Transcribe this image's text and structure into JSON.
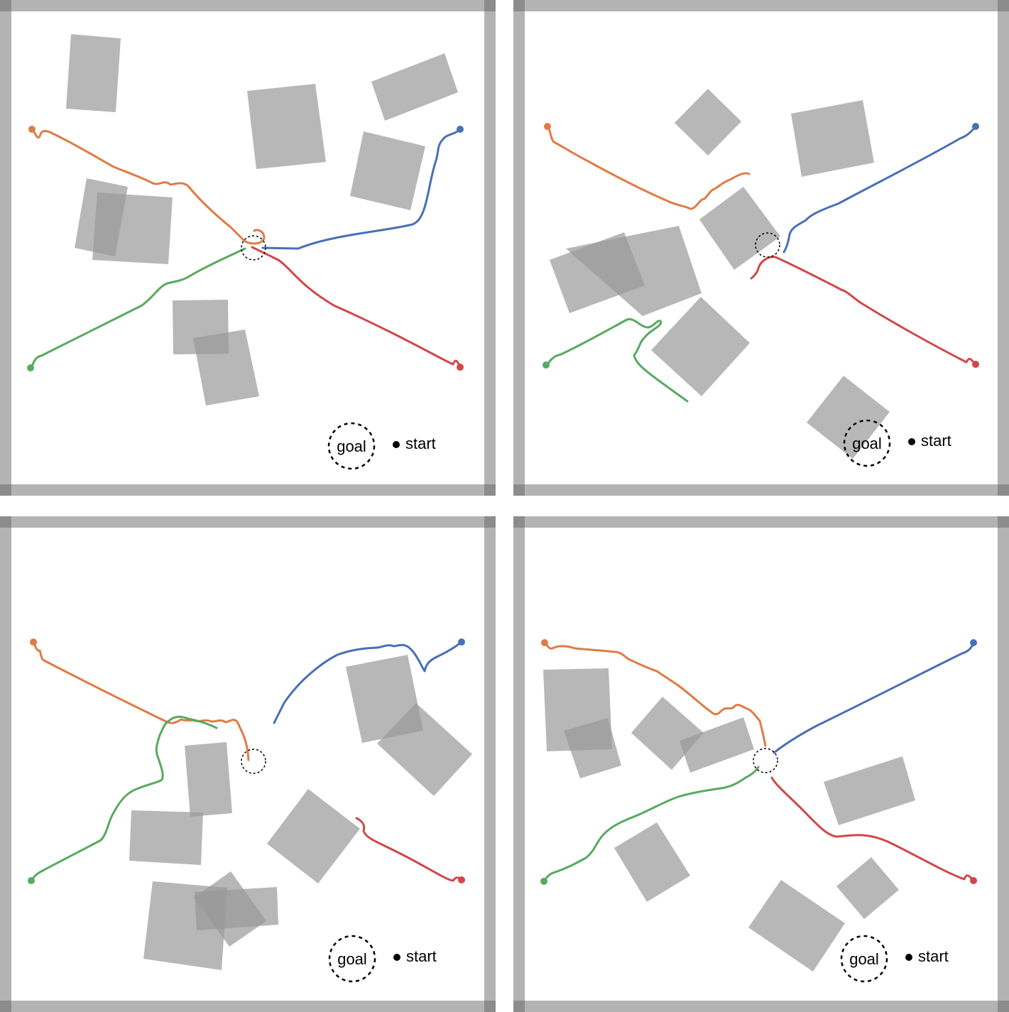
{
  "legend": {
    "goal_label": "goal",
    "start_label": "start"
  },
  "colors": {
    "wall": "#b3b3b3",
    "wall_corner": "#8c8c8c",
    "obstacle": "#999999",
    "orange": "#e07b45",
    "blue": "#4870b5",
    "red": "#d0474b",
    "green": "#57aa60"
  },
  "panels": [
    {
      "id": "top-left",
      "legend": {
        "goal_label": "goal",
        "start_label": "start"
      }
    },
    {
      "id": "top-right",
      "legend": {
        "goal_label": "goal",
        "start_label": "start"
      }
    },
    {
      "id": "bottom-left",
      "legend": {
        "goal_label": "goal",
        "start_label": "start"
      }
    },
    {
      "id": "bottom-right",
      "legend": {
        "goal_label": "goal",
        "start_label": "start"
      }
    }
  ]
}
